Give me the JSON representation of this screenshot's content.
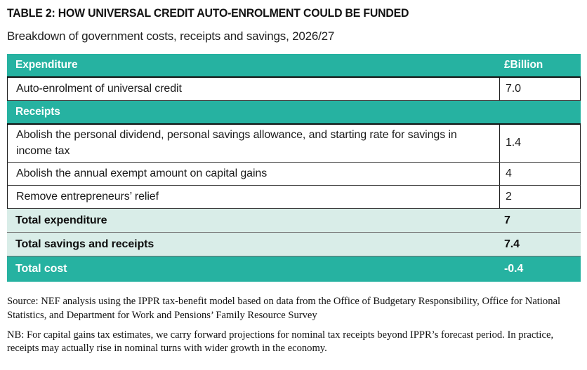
{
  "title": "TABLE 2: HOW UNIVERSAL CREDIT AUTO-ENROLMENT COULD BE FUNDED",
  "subtitle": "Breakdown of government costs, receipts and savings, 2026/27",
  "colors": {
    "teal": "#26b2a1",
    "mint": "#d9ede8",
    "band_text": "#ffffff",
    "body_text": "#1a1a1a"
  },
  "table": {
    "value_unit_header": "£Billion",
    "rows": [
      {
        "type": "section",
        "label": "Expenditure",
        "value": "£Billion"
      },
      {
        "type": "data",
        "label": "Auto-enrolment of universal credit",
        "value": "7.0"
      },
      {
        "type": "section",
        "label": "Receipts",
        "value": ""
      },
      {
        "type": "data",
        "label": "Abolish the personal dividend, personal savings allowance, and starting rate for savings in income tax",
        "value": "1.4"
      },
      {
        "type": "data",
        "label": "Abolish the annual exempt amount on capital gains",
        "value": "4"
      },
      {
        "type": "data",
        "label": "Remove entrepreneurs’ relief",
        "value": "2"
      },
      {
        "type": "total",
        "label": "Total expenditure",
        "value": "7"
      },
      {
        "type": "total",
        "label": "Total savings and receipts",
        "value": "7.4"
      },
      {
        "type": "grand_total",
        "label": "Total cost",
        "value": "-0.4"
      }
    ]
  },
  "footnotes": {
    "source": "Source: NEF analysis using the IPPR tax-benefit model based on data from the Office of Budgetary Responsibility, Office for National Statistics, and Department for Work and Pensions’ Family Resource Survey",
    "nb": "NB: For capital gains tax estimates, we carry forward projections for nominal tax receipts beyond IPPR’s forecast period. In practice, receipts may actually rise in nominal turns with wider growth in the economy."
  }
}
